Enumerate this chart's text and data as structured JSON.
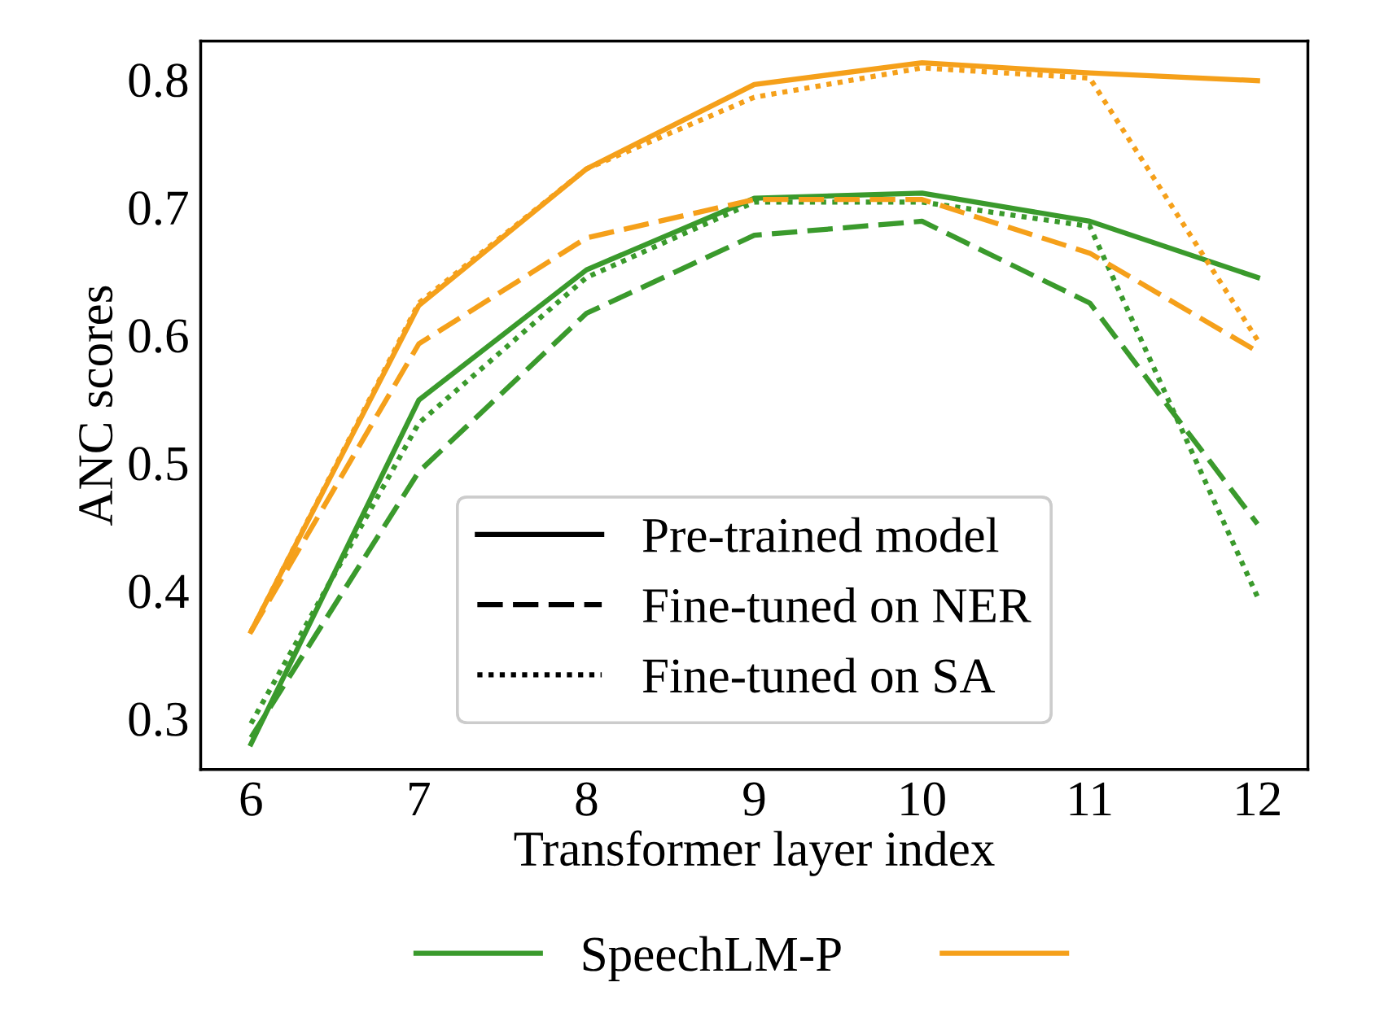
{
  "chart_data": {
    "type": "line",
    "xlabel": "Transformer layer index",
    "ylabel": "ANC scores",
    "x": [
      6,
      7,
      8,
      9,
      10,
      11,
      12
    ],
    "xlim": [
      5.7,
      12.3
    ],
    "xticks": [
      6,
      7,
      8,
      9,
      10,
      11,
      12
    ],
    "ylim": [
      0.26,
      0.83
    ],
    "yticks": [
      0.3,
      0.4,
      0.5,
      0.6,
      0.7,
      0.8
    ],
    "grid": false,
    "legend": "bottom",
    "annotations": [
      "Pre-trained model",
      "Fine-tuned on NER",
      "Fine-tuned on SA"
    ],
    "series": [
      {
        "name": "SpeechLM-P",
        "color": "#3a9a2c",
        "line_style": "solid",
        "values": [
          0.28,
          0.549,
          0.651,
          0.707,
          0.711,
          0.689,
          0.645
        ]
      },
      {
        "color": "#3a9a2c",
        "line_style": "dashed",
        "values": [
          0.285,
          0.493,
          0.617,
          0.678,
          0.689,
          0.625,
          0.452
        ]
      },
      {
        "color": "#3a9a2c",
        "line_style": "dotted",
        "values": [
          0.296,
          0.531,
          0.645,
          0.704,
          0.704,
          0.685,
          0.395
        ]
      },
      {
        "color": "#f5a01a",
        "line_style": "solid",
        "values": [
          0.368,
          0.623,
          0.73,
          0.796,
          0.813,
          0.805,
          0.799
        ]
      },
      {
        "color": "#f5a01a",
        "line_style": "dashed",
        "values": [
          0.368,
          0.593,
          0.676,
          0.706,
          0.706,
          0.664,
          0.587
        ]
      },
      {
        "color": "#f5a01a",
        "line_style": "dotted",
        "values": [
          0.368,
          0.625,
          0.73,
          0.786,
          0.809,
          0.801,
          0.596
        ]
      }
    ]
  }
}
